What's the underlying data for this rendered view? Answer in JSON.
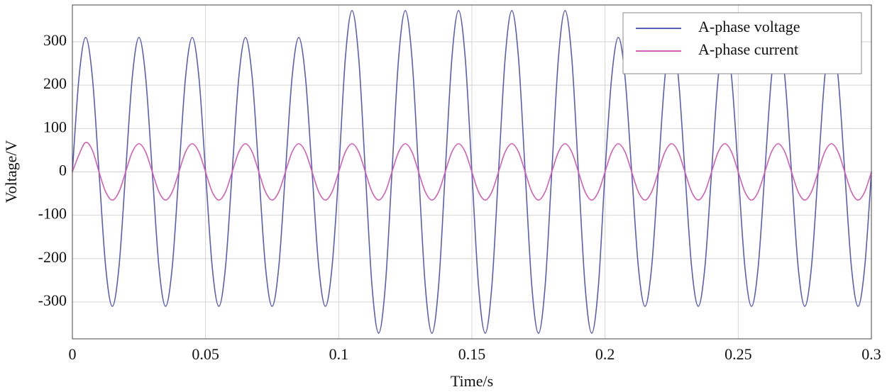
{
  "chart_data": {
    "type": "line",
    "xlabel": "Time/s",
    "ylabel": "Voltage/V",
    "x": [
      0,
      0.0025,
      0.005,
      0.0075,
      0.01,
      0.0125,
      0.015,
      0.0175,
      0.02,
      0.0225,
      0.025,
      0.0275,
      0.03,
      0.0325,
      0.035,
      0.0375,
      0.04,
      0.0425,
      0.045,
      0.0475,
      0.05,
      0.0525,
      0.055,
      0.0575,
      0.06,
      0.0625,
      0.065,
      0.0675,
      0.07,
      0.0725,
      0.075,
      0.0775,
      0.08,
      0.0825,
      0.085,
      0.0875,
      0.09,
      0.0925,
      0.095,
      0.0975,
      0.1,
      0.1025,
      0.105,
      0.1075,
      0.11,
      0.1125,
      0.115,
      0.1175,
      0.12,
      0.1225,
      0.125,
      0.1275,
      0.13,
      0.1325,
      0.135,
      0.1375,
      0.14,
      0.1425,
      0.145,
      0.1475,
      0.15,
      0.1525,
      0.155,
      0.1575,
      0.16,
      0.1625,
      0.165,
      0.1675,
      0.17,
      0.1725,
      0.175,
      0.1775,
      0.18,
      0.1825,
      0.185,
      0.1875,
      0.19,
      0.1925,
      0.195,
      0.1975,
      0.2,
      0.2025,
      0.205,
      0.2075,
      0.21,
      0.2125,
      0.215,
      0.2175,
      0.22,
      0.2225,
      0.225,
      0.2275,
      0.23,
      0.2325,
      0.235,
      0.2375,
      0.24,
      0.2425,
      0.245,
      0.2475,
      0.25,
      0.2525,
      0.255,
      0.2575,
      0.26,
      0.2625,
      0.265,
      0.2675,
      0.27,
      0.2725,
      0.275,
      0.2775,
      0.28,
      0.2825,
      0.285,
      0.2875,
      0.29,
      0.2925,
      0.295,
      0.2975,
      0.3
    ],
    "series": [
      {
        "name": "A-phase voltage",
        "color": "#5b5db4",
        "values": [
          0,
          219,
          310,
          219,
          0,
          -219,
          -310,
          -219,
          0,
          219,
          310,
          219,
          0,
          -219,
          -310,
          -219,
          0,
          219,
          310,
          219,
          0,
          -219,
          -310,
          -219,
          0,
          219,
          310,
          219,
          0,
          -219,
          -310,
          -219,
          0,
          219,
          310,
          219,
          0,
          -219,
          -310,
          -219,
          0,
          263,
          372,
          263,
          0,
          -263,
          -372,
          -263,
          0,
          263,
          372,
          263,
          0,
          -263,
          -372,
          -263,
          0,
          263,
          372,
          263,
          0,
          -263,
          -372,
          -263,
          0,
          263,
          372,
          263,
          0,
          -263,
          -372,
          -263,
          0,
          263,
          372,
          263,
          0,
          -263,
          -372,
          -263,
          0,
          219,
          310,
          219,
          0,
          -219,
          -310,
          -219,
          0,
          219,
          310,
          219,
          0,
          -219,
          -310,
          -219,
          0,
          219,
          310,
          219,
          0,
          -219,
          -310,
          -219,
          0,
          219,
          310,
          219,
          0,
          -219,
          -310,
          -219,
          0,
          219,
          310,
          219,
          0,
          -219,
          -310,
          -219,
          0
        ]
      },
      {
        "name": "A-phase current",
        "color": "#d35fb5",
        "values": [
          0,
          40,
          68,
          50,
          0,
          -46,
          -65,
          -46,
          0,
          46,
          65,
          46,
          0,
          -46,
          -65,
          -46,
          0,
          46,
          65,
          46,
          0,
          -46,
          -65,
          -46,
          0,
          46,
          65,
          46,
          0,
          -46,
          -65,
          -46,
          0,
          46,
          65,
          46,
          0,
          -46,
          -65,
          -46,
          0,
          46,
          65,
          46,
          0,
          -46,
          -65,
          -46,
          0,
          46,
          65,
          46,
          0,
          -46,
          -65,
          -46,
          0,
          46,
          65,
          46,
          0,
          -46,
          -65,
          -46,
          0,
          46,
          65,
          46,
          0,
          -46,
          -65,
          -46,
          0,
          46,
          65,
          46,
          0,
          -46,
          -65,
          -46,
          0,
          46,
          65,
          46,
          0,
          -46,
          -65,
          -46,
          0,
          46,
          65,
          46,
          0,
          -46,
          -65,
          -46,
          0,
          46,
          65,
          46,
          0,
          -46,
          -65,
          -46,
          0,
          46,
          65,
          46,
          0,
          -46,
          -65,
          -46,
          0,
          46,
          65,
          46,
          0,
          -46,
          -65,
          -46,
          0
        ]
      }
    ],
    "xlim": [
      0,
      0.3
    ],
    "xticks": [
      0,
      0.05,
      0.1,
      0.15,
      0.2,
      0.25,
      0.3
    ],
    "ylim": [
      -385,
      385
    ],
    "yticks": [
      -300,
      -200,
      -100,
      0,
      100,
      200,
      300
    ],
    "grid": true,
    "legend": "upper right"
  }
}
